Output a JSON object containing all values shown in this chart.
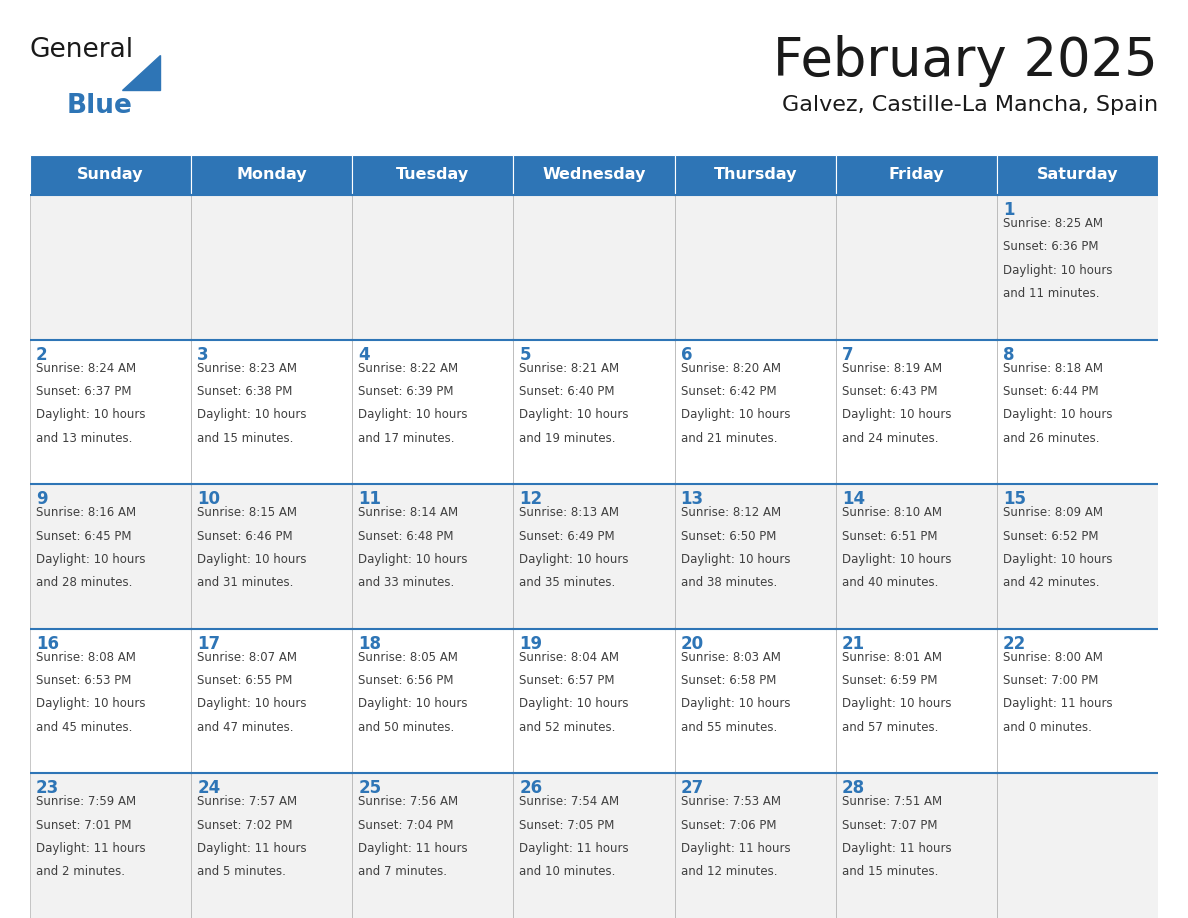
{
  "title": "February 2025",
  "subtitle": "Galvez, Castille-La Mancha, Spain",
  "days_of_week": [
    "Sunday",
    "Monday",
    "Tuesday",
    "Wednesday",
    "Thursday",
    "Friday",
    "Saturday"
  ],
  "header_bg": "#2e75b6",
  "header_text": "#ffffff",
  "cell_bg_odd": "#f2f2f2",
  "cell_bg_even": "#ffffff",
  "cell_border": "#b0b0b0",
  "row_top_border": "#2e75b6",
  "day_num_color": "#2e75b6",
  "cell_text_color": "#404040",
  "title_color": "#1a1a1a",
  "subtitle_color": "#1a1a1a",
  "logo_general_color": "#1a1a1a",
  "logo_blue_color": "#2e75b6",
  "calendar_data": [
    [
      null,
      null,
      null,
      null,
      null,
      null,
      {
        "day": 1,
        "sunrise": "8:25 AM",
        "sunset": "6:36 PM",
        "daylight_line1": "Daylight: 10 hours",
        "daylight_line2": "and 11 minutes."
      }
    ],
    [
      {
        "day": 2,
        "sunrise": "8:24 AM",
        "sunset": "6:37 PM",
        "daylight_line1": "Daylight: 10 hours",
        "daylight_line2": "and 13 minutes."
      },
      {
        "day": 3,
        "sunrise": "8:23 AM",
        "sunset": "6:38 PM",
        "daylight_line1": "Daylight: 10 hours",
        "daylight_line2": "and 15 minutes."
      },
      {
        "day": 4,
        "sunrise": "8:22 AM",
        "sunset": "6:39 PM",
        "daylight_line1": "Daylight: 10 hours",
        "daylight_line2": "and 17 minutes."
      },
      {
        "day": 5,
        "sunrise": "8:21 AM",
        "sunset": "6:40 PM",
        "daylight_line1": "Daylight: 10 hours",
        "daylight_line2": "and 19 minutes."
      },
      {
        "day": 6,
        "sunrise": "8:20 AM",
        "sunset": "6:42 PM",
        "daylight_line1": "Daylight: 10 hours",
        "daylight_line2": "and 21 minutes."
      },
      {
        "day": 7,
        "sunrise": "8:19 AM",
        "sunset": "6:43 PM",
        "daylight_line1": "Daylight: 10 hours",
        "daylight_line2": "and 24 minutes."
      },
      {
        "day": 8,
        "sunrise": "8:18 AM",
        "sunset": "6:44 PM",
        "daylight_line1": "Daylight: 10 hours",
        "daylight_line2": "and 26 minutes."
      }
    ],
    [
      {
        "day": 9,
        "sunrise": "8:16 AM",
        "sunset": "6:45 PM",
        "daylight_line1": "Daylight: 10 hours",
        "daylight_line2": "and 28 minutes."
      },
      {
        "day": 10,
        "sunrise": "8:15 AM",
        "sunset": "6:46 PM",
        "daylight_line1": "Daylight: 10 hours",
        "daylight_line2": "and 31 minutes."
      },
      {
        "day": 11,
        "sunrise": "8:14 AM",
        "sunset": "6:48 PM",
        "daylight_line1": "Daylight: 10 hours",
        "daylight_line2": "and 33 minutes."
      },
      {
        "day": 12,
        "sunrise": "8:13 AM",
        "sunset": "6:49 PM",
        "daylight_line1": "Daylight: 10 hours",
        "daylight_line2": "and 35 minutes."
      },
      {
        "day": 13,
        "sunrise": "8:12 AM",
        "sunset": "6:50 PM",
        "daylight_line1": "Daylight: 10 hours",
        "daylight_line2": "and 38 minutes."
      },
      {
        "day": 14,
        "sunrise": "8:10 AM",
        "sunset": "6:51 PM",
        "daylight_line1": "Daylight: 10 hours",
        "daylight_line2": "and 40 minutes."
      },
      {
        "day": 15,
        "sunrise": "8:09 AM",
        "sunset": "6:52 PM",
        "daylight_line1": "Daylight: 10 hours",
        "daylight_line2": "and 42 minutes."
      }
    ],
    [
      {
        "day": 16,
        "sunrise": "8:08 AM",
        "sunset": "6:53 PM",
        "daylight_line1": "Daylight: 10 hours",
        "daylight_line2": "and 45 minutes."
      },
      {
        "day": 17,
        "sunrise": "8:07 AM",
        "sunset": "6:55 PM",
        "daylight_line1": "Daylight: 10 hours",
        "daylight_line2": "and 47 minutes."
      },
      {
        "day": 18,
        "sunrise": "8:05 AM",
        "sunset": "6:56 PM",
        "daylight_line1": "Daylight: 10 hours",
        "daylight_line2": "and 50 minutes."
      },
      {
        "day": 19,
        "sunrise": "8:04 AM",
        "sunset": "6:57 PM",
        "daylight_line1": "Daylight: 10 hours",
        "daylight_line2": "and 52 minutes."
      },
      {
        "day": 20,
        "sunrise": "8:03 AM",
        "sunset": "6:58 PM",
        "daylight_line1": "Daylight: 10 hours",
        "daylight_line2": "and 55 minutes."
      },
      {
        "day": 21,
        "sunrise": "8:01 AM",
        "sunset": "6:59 PM",
        "daylight_line1": "Daylight: 10 hours",
        "daylight_line2": "and 57 minutes."
      },
      {
        "day": 22,
        "sunrise": "8:00 AM",
        "sunset": "7:00 PM",
        "daylight_line1": "Daylight: 11 hours",
        "daylight_line2": "and 0 minutes."
      }
    ],
    [
      {
        "day": 23,
        "sunrise": "7:59 AM",
        "sunset": "7:01 PM",
        "daylight_line1": "Daylight: 11 hours",
        "daylight_line2": "and 2 minutes."
      },
      {
        "day": 24,
        "sunrise": "7:57 AM",
        "sunset": "7:02 PM",
        "daylight_line1": "Daylight: 11 hours",
        "daylight_line2": "and 5 minutes."
      },
      {
        "day": 25,
        "sunrise": "7:56 AM",
        "sunset": "7:04 PM",
        "daylight_line1": "Daylight: 11 hours",
        "daylight_line2": "and 7 minutes."
      },
      {
        "day": 26,
        "sunrise": "7:54 AM",
        "sunset": "7:05 PM",
        "daylight_line1": "Daylight: 11 hours",
        "daylight_line2": "and 10 minutes."
      },
      {
        "day": 27,
        "sunrise": "7:53 AM",
        "sunset": "7:06 PM",
        "daylight_line1": "Daylight: 11 hours",
        "daylight_line2": "and 12 minutes."
      },
      {
        "day": 28,
        "sunrise": "7:51 AM",
        "sunset": "7:07 PM",
        "daylight_line1": "Daylight: 11 hours",
        "daylight_line2": "and 15 minutes."
      },
      null
    ]
  ]
}
